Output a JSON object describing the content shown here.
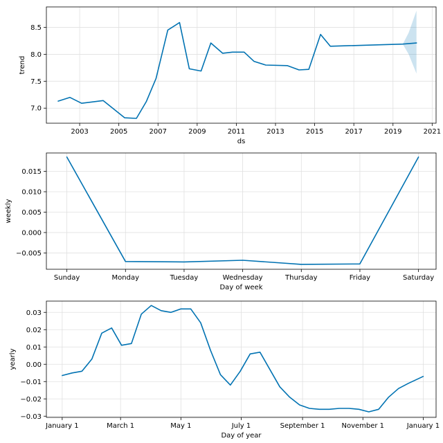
{
  "chart_data": [
    {
      "type": "line",
      "id": "trend",
      "title": "",
      "xlabel": "ds",
      "ylabel": "trend",
      "line_color": "#0072B2",
      "band_color": "#0072B2",
      "x": [
        2001.9,
        2002.5,
        2003.1,
        2004.2,
        2005.3,
        2005.9,
        2006.4,
        2006.9,
        2007.5,
        2008.1,
        2008.6,
        2009.2,
        2009.7,
        2010.3,
        2010.8,
        2011.4,
        2011.9,
        2012.5,
        2013.6,
        2014.2,
        2014.7,
        2015.3,
        2015.8,
        2019.5,
        2020.2
      ],
      "values": [
        7.13,
        7.2,
        7.09,
        7.14,
        6.82,
        6.81,
        7.12,
        7.55,
        8.45,
        8.59,
        7.73,
        7.69,
        8.21,
        8.02,
        8.04,
        8.04,
        7.87,
        7.8,
        7.79,
        7.71,
        7.72,
        8.37,
        8.15,
        8.19,
        8.21
      ],
      "uncertainty": {
        "x": [
          2019.5,
          2019.8,
          2020.2
        ],
        "lower": [
          8.19,
          8.0,
          7.64
        ],
        "upper": [
          8.19,
          8.4,
          8.81
        ]
      },
      "xlim": [
        2001.3,
        2021.2
      ],
      "ylim": [
        6.72,
        8.88
      ],
      "xticks": [
        2003,
        2005,
        2007,
        2009,
        2011,
        2013,
        2015,
        2017,
        2019,
        2021
      ],
      "xtick_labels": [
        "2003",
        "2005",
        "2007",
        "2009",
        "2011",
        "2013",
        "2015",
        "2017",
        "2019",
        "2021"
      ],
      "yticks": [
        7.0,
        7.5,
        8.0,
        8.5
      ],
      "ytick_labels": [
        "7.0",
        "7.5",
        "8.0",
        "8.5"
      ],
      "grid": true
    },
    {
      "type": "line",
      "id": "weekly",
      "title": "",
      "xlabel": "Day of week",
      "ylabel": "weekly",
      "line_color": "#0072B2",
      "categories": [
        "Sunday",
        "Monday",
        "Tuesday",
        "Wednesday",
        "Thursday",
        "Friday",
        "Saturday"
      ],
      "values": [
        0.0185,
        -0.0071,
        -0.0072,
        -0.0068,
        -0.0078,
        -0.0077,
        0.0185
      ],
      "xlim": [
        -0.35,
        6.3
      ],
      "ylim": [
        -0.009,
        0.0195
      ],
      "yticks": [
        -0.005,
        0.0,
        0.005,
        0.01,
        0.015
      ],
      "ytick_labels": [
        "−0.005",
        "0.000",
        "0.005",
        "0.010",
        "0.015"
      ],
      "grid": true
    },
    {
      "type": "line",
      "id": "yearly",
      "title": "",
      "xlabel": "Day of year",
      "ylabel": "yearly",
      "line_color": "#0072B2",
      "x": [
        0,
        10,
        20,
        30,
        40,
        50,
        60,
        70,
        80,
        90,
        100,
        110,
        120,
        130,
        140,
        150,
        160,
        170,
        180,
        190,
        200,
        210,
        220,
        230,
        240,
        250,
        260,
        270,
        280,
        290,
        300,
        310,
        320,
        330,
        340,
        350,
        365
      ],
      "values": [
        -0.0065,
        -0.005,
        -0.004,
        0.003,
        0.018,
        0.021,
        0.011,
        0.012,
        0.029,
        0.034,
        0.031,
        0.03,
        0.032,
        0.032,
        0.024,
        0.008,
        -0.006,
        -0.012,
        -0.004,
        0.006,
        0.007,
        -0.003,
        -0.013,
        -0.019,
        -0.0235,
        -0.0255,
        -0.026,
        -0.026,
        -0.0255,
        -0.0255,
        -0.026,
        -0.0275,
        -0.026,
        -0.019,
        -0.014,
        -0.011,
        -0.007
      ],
      "xlim": [
        -16,
        378
      ],
      "ylim": [
        -0.0307,
        0.0365
      ],
      "xticks": [
        0,
        59,
        120,
        181,
        243,
        304,
        365
      ],
      "xtick_labels": [
        "January 1",
        "March 1",
        "May 1",
        "July 1",
        "September 1",
        "November 1",
        "January 1"
      ],
      "yticks": [
        -0.03,
        -0.02,
        -0.01,
        0.0,
        0.01,
        0.02,
        0.03
      ],
      "ytick_labels": [
        "−0.03",
        "−0.02",
        "−0.01",
        "0.00",
        "0.01",
        "0.02",
        "0.03"
      ],
      "grid": true
    }
  ]
}
